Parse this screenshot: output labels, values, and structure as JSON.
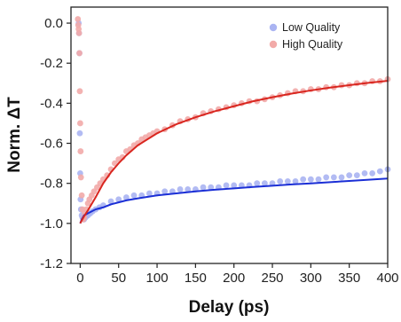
{
  "chart_data": {
    "type": "scatter",
    "xlabel": "Delay (ps)",
    "ylabel": "Norm. ΔT",
    "xlim": [
      -12,
      400
    ],
    "ylim": [
      -1.2,
      0.08
    ],
    "x_ticks": [
      0,
      50,
      100,
      150,
      200,
      250,
      300,
      350,
      400
    ],
    "y_ticks": [
      -1.2,
      -1.0,
      -0.8,
      -0.6,
      -0.4,
      -0.2,
      0.0
    ],
    "x_tick_labels": [
      "0",
      "50",
      "100",
      "150",
      "200",
      "250",
      "300",
      "350",
      "400"
    ],
    "y_tick_labels": [
      "-1.2",
      "-1.0",
      "-0.8",
      "-0.6",
      "-0.4",
      "-0.2",
      "0.0"
    ],
    "grid": false,
    "legend_position": "top-right",
    "colors": {
      "low_points": "#aab4f2",
      "high_points": "#f2aaa8",
      "low_fit": "#1b2fd6",
      "high_fit": "#d9261f"
    },
    "series": [
      {
        "name": "Low Quality",
        "kind": "scatter",
        "color": "#aab4f2",
        "x": [
          -2,
          -1.5,
          -1,
          -0.5,
          0,
          0.5,
          1,
          2,
          3,
          5,
          7,
          10,
          13,
          16,
          20,
          25,
          30,
          40,
          50,
          60,
          70,
          80,
          90,
          100,
          110,
          120,
          130,
          140,
          150,
          160,
          170,
          180,
          190,
          200,
          210,
          220,
          230,
          240,
          250,
          260,
          270,
          280,
          290,
          300,
          310,
          320,
          330,
          340,
          350,
          360,
          370,
          380,
          390,
          400
        ],
        "y": [
          0.0,
          -0.05,
          -0.15,
          -0.55,
          -0.75,
          -0.88,
          -0.93,
          -0.96,
          -0.97,
          -0.98,
          -0.97,
          -0.96,
          -0.95,
          -0.94,
          -0.93,
          -0.92,
          -0.91,
          -0.89,
          -0.88,
          -0.87,
          -0.86,
          -0.86,
          -0.85,
          -0.85,
          -0.84,
          -0.84,
          -0.83,
          -0.83,
          -0.83,
          -0.82,
          -0.82,
          -0.82,
          -0.81,
          -0.81,
          -0.81,
          -0.81,
          -0.8,
          -0.8,
          -0.8,
          -0.79,
          -0.79,
          -0.79,
          -0.78,
          -0.78,
          -0.78,
          -0.77,
          -0.77,
          -0.77,
          -0.76,
          -0.76,
          -0.75,
          -0.75,
          -0.74,
          -0.73
        ]
      },
      {
        "name": "High Quality",
        "kind": "scatter",
        "color": "#f2aaa8",
        "x": [
          -3,
          -2.5,
          -2,
          -1.5,
          -1,
          -0.5,
          0,
          0.5,
          1,
          2,
          3,
          4,
          5,
          6,
          8,
          10,
          12,
          15,
          18,
          22,
          26,
          30,
          35,
          40,
          45,
          50,
          55,
          60,
          65,
          70,
          75,
          80,
          85,
          90,
          95,
          100,
          110,
          120,
          130,
          140,
          150,
          160,
          170,
          180,
          190,
          200,
          210,
          220,
          230,
          240,
          250,
          260,
          270,
          280,
          290,
          300,
          310,
          320,
          330,
          340,
          350,
          360,
          370,
          380,
          390,
          400
        ],
        "y": [
          0.02,
          -0.01,
          -0.03,
          -0.05,
          -0.15,
          -0.34,
          -0.5,
          -0.64,
          -0.77,
          -0.86,
          -0.93,
          -0.98,
          -0.97,
          -0.95,
          -0.93,
          -0.9,
          -0.88,
          -0.86,
          -0.84,
          -0.82,
          -0.8,
          -0.78,
          -0.76,
          -0.73,
          -0.7,
          -0.68,
          -0.67,
          -0.64,
          -0.63,
          -0.61,
          -0.6,
          -0.58,
          -0.57,
          -0.56,
          -0.55,
          -0.54,
          -0.53,
          -0.51,
          -0.49,
          -0.48,
          -0.47,
          -0.45,
          -0.44,
          -0.43,
          -0.42,
          -0.41,
          -0.4,
          -0.39,
          -0.39,
          -0.38,
          -0.37,
          -0.36,
          -0.35,
          -0.34,
          -0.34,
          -0.33,
          -0.33,
          -0.32,
          -0.32,
          -0.31,
          -0.31,
          -0.3,
          -0.3,
          -0.29,
          -0.29,
          -0.28
        ]
      },
      {
        "kind": "line",
        "color": "#1b2fd6",
        "x": [
          0,
          2,
          5,
          10,
          20,
          30,
          40,
          50,
          60,
          75,
          100,
          125,
          150,
          175,
          200,
          225,
          250,
          275,
          300,
          325,
          350,
          375,
          400
        ],
        "y": [
          -1.0,
          -0.98,
          -0.96,
          -0.95,
          -0.93,
          -0.92,
          -0.905,
          -0.895,
          -0.885,
          -0.875,
          -0.86,
          -0.85,
          -0.84,
          -0.832,
          -0.825,
          -0.818,
          -0.812,
          -0.805,
          -0.8,
          -0.794,
          -0.788,
          -0.782,
          -0.776
        ]
      },
      {
        "kind": "line",
        "color": "#d9261f",
        "x": [
          0,
          2,
          5,
          10,
          20,
          30,
          40,
          50,
          60,
          75,
          100,
          125,
          150,
          175,
          200,
          225,
          250,
          275,
          300,
          325,
          350,
          375,
          400
        ],
        "y": [
          -1.0,
          -0.985,
          -0.965,
          -0.935,
          -0.87,
          -0.8,
          -0.745,
          -0.7,
          -0.66,
          -0.61,
          -0.55,
          -0.505,
          -0.47,
          -0.44,
          -0.415,
          -0.39,
          -0.37,
          -0.352,
          -0.336,
          -0.322,
          -0.31,
          -0.298,
          -0.288
        ]
      }
    ]
  }
}
